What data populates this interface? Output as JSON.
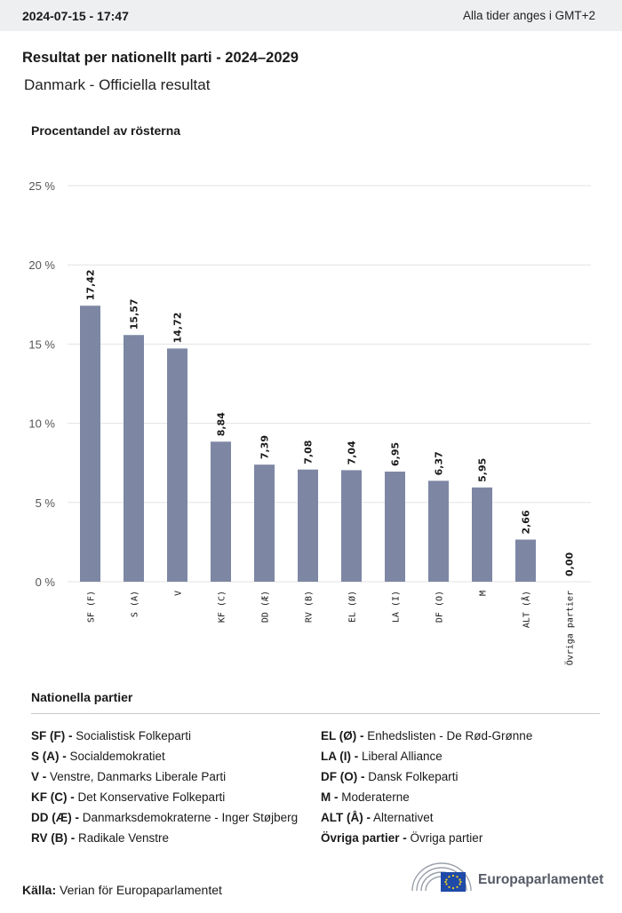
{
  "header": {
    "timestamp": "2024-07-15 - 17:47",
    "timezone_note": "Alla tider anges i GMT+2"
  },
  "page": {
    "title": "Resultat per nationellt parti - 2024–2029",
    "subtitle": "Danmark - Officiella resultat",
    "chart_heading": "Procentandel av rösterna"
  },
  "colors": {
    "bar": "#7d87a4",
    "grid": "#e3e3e3",
    "axis_text": "#555555"
  },
  "chart_data": {
    "type": "bar",
    "title": "Procentandel av rösterna",
    "xlabel": "",
    "ylabel": "",
    "ylim": [
      0,
      25
    ],
    "yticks": [
      0,
      5,
      10,
      15,
      20,
      25
    ],
    "ytick_labels": [
      "0 %",
      "5 %",
      "10 %",
      "15 %",
      "20 %",
      "25 %"
    ],
    "grid": true,
    "categories": [
      "SF (F)",
      "S (A)",
      "V",
      "KF (C)",
      "DD (Æ)",
      "RV (B)",
      "EL (Ø)",
      "LA (I)",
      "DF (O)",
      "M",
      "ALT (Å)",
      "Övriga partier"
    ],
    "values": [
      17.42,
      15.57,
      14.72,
      8.84,
      7.39,
      7.08,
      7.04,
      6.95,
      6.37,
      5.95,
      2.66,
      0.0
    ],
    "value_labels": [
      "17,42",
      "15,57",
      "14,72",
      "8,84",
      "7,39",
      "7,08",
      "7,04",
      "6,95",
      "6,37",
      "5,95",
      "2,66",
      "0,00"
    ]
  },
  "legend": {
    "title": "Nationella partier",
    "left": [
      {
        "abbr": "SF (F) -",
        "name": "Socialistisk Folkeparti"
      },
      {
        "abbr": "S (A) -",
        "name": "Socialdemokratiet"
      },
      {
        "abbr": "V -",
        "name": "Venstre, Danmarks Liberale Parti"
      },
      {
        "abbr": "KF (C) -",
        "name": "Det Konservative Folkeparti"
      },
      {
        "abbr": "DD (Æ) -",
        "name": "Danmarksdemokraterne - Inger Støjberg"
      },
      {
        "abbr": "RV (B) -",
        "name": "Radikale Venstre"
      }
    ],
    "right": [
      {
        "abbr": "EL (Ø) -",
        "name": "Enhedslisten - De Rød-Grønne"
      },
      {
        "abbr": "LA (I) -",
        "name": "Liberal Alliance"
      },
      {
        "abbr": "DF (O) -",
        "name": "Dansk Folkeparti"
      },
      {
        "abbr": "M -",
        "name": "Moderaterne"
      },
      {
        "abbr": "ALT (Å) -",
        "name": "Alternativet"
      },
      {
        "abbr": "Övriga partier -",
        "name": "Övriga partier"
      }
    ]
  },
  "footer": {
    "source_label": "Källa:",
    "source_text": "Verian för Europaparlamentet",
    "logo_text": "Europaparlamentet"
  }
}
